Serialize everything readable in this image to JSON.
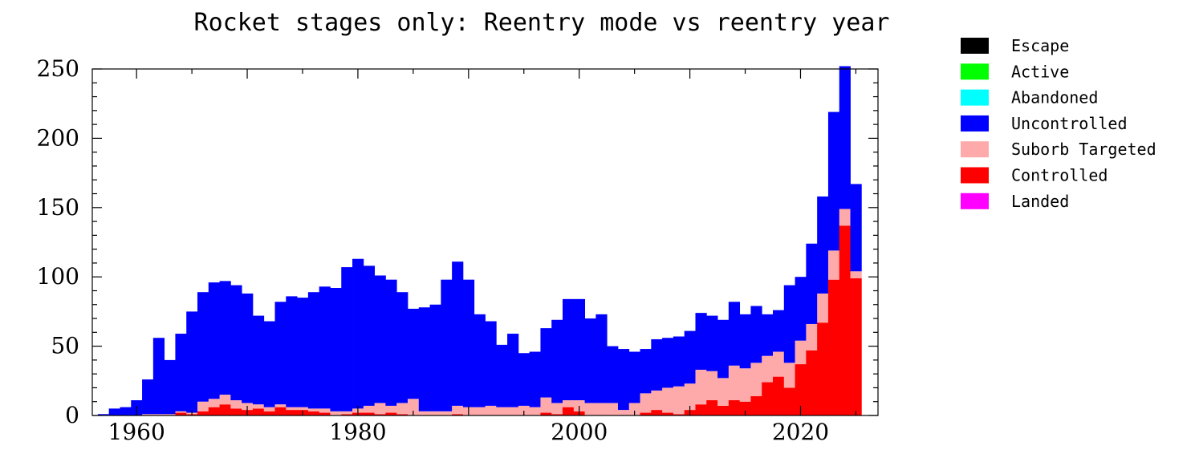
{
  "chart_data": {
    "type": "bar",
    "stacked": true,
    "title": "Rocket stages only: Reentry mode vs reentry year",
    "xlabel": "",
    "ylabel": "",
    "xlim": [
      1956,
      2027
    ],
    "ylim": [
      0,
      250
    ],
    "yticks": [
      0,
      50,
      100,
      150,
      200,
      250
    ],
    "xticks": [
      1960,
      1980,
      2000,
      2020
    ],
    "grid": false,
    "legend_position": "right",
    "x": [
      1957,
      1958,
      1959,
      1960,
      1961,
      1962,
      1963,
      1964,
      1965,
      1966,
      1967,
      1968,
      1969,
      1970,
      1971,
      1972,
      1973,
      1974,
      1975,
      1976,
      1977,
      1978,
      1979,
      1980,
      1981,
      1982,
      1983,
      1984,
      1985,
      1986,
      1987,
      1988,
      1989,
      1990,
      1991,
      1992,
      1993,
      1994,
      1995,
      1996,
      1997,
      1998,
      1999,
      2000,
      2001,
      2002,
      2003,
      2004,
      2005,
      2006,
      2007,
      2008,
      2009,
      2010,
      2011,
      2012,
      2013,
      2014,
      2015,
      2016,
      2017,
      2018,
      2019,
      2020,
      2021,
      2022,
      2023,
      2024,
      2025
    ],
    "series": [
      {
        "name": "Escape",
        "color": "#000000",
        "values": [
          0,
          0,
          0,
          0,
          0,
          0,
          0,
          0,
          0,
          0,
          0,
          0,
          0,
          0,
          0,
          0,
          0,
          0,
          0,
          0,
          0,
          0,
          0,
          0,
          0,
          0,
          0,
          0,
          0,
          0,
          0,
          0,
          0,
          0,
          0,
          0,
          0,
          0,
          0,
          0,
          0,
          0,
          0,
          0,
          0,
          0,
          0,
          0,
          0,
          0,
          0,
          0,
          0,
          0,
          0,
          0,
          0,
          0,
          0,
          0,
          0,
          0,
          0,
          0,
          0,
          0,
          0,
          0,
          0
        ]
      },
      {
        "name": "Active",
        "color": "#00ff00",
        "values": [
          0,
          0,
          0,
          0,
          0,
          0,
          0,
          0,
          0,
          0,
          0,
          0,
          0,
          0,
          0,
          0,
          0,
          0,
          0,
          0,
          0,
          0,
          0,
          0,
          0,
          0,
          0,
          0,
          0,
          0,
          0,
          0,
          0,
          0,
          0,
          0,
          0,
          0,
          0,
          0,
          0,
          0,
          0,
          0,
          0,
          0,
          0,
          0,
          0,
          0,
          0,
          0,
          0,
          0,
          0,
          0,
          0,
          0,
          0,
          0,
          0,
          0,
          0,
          0,
          0,
          0,
          0,
          0,
          0
        ]
      },
      {
        "name": "Abandoned",
        "color": "#00ffff",
        "values": [
          0,
          0,
          0,
          0,
          0,
          0,
          0,
          0,
          0,
          0,
          0,
          0,
          0,
          0,
          0,
          0,
          0,
          0,
          0,
          0,
          0,
          0,
          0,
          0,
          0,
          0,
          0,
          0,
          0,
          0,
          0,
          0,
          0,
          0,
          0,
          0,
          0,
          0,
          0,
          0,
          0,
          0,
          0,
          0,
          0,
          0,
          0,
          0,
          0,
          0,
          0,
          0,
          0,
          0,
          0,
          0,
          0,
          0,
          0,
          0,
          0,
          0,
          0,
          0,
          0,
          0,
          0,
          0,
          0
        ]
      },
      {
        "name": "Uncontrolled",
        "color": "#0000ff",
        "values": [
          1,
          5,
          6,
          11,
          25,
          55,
          39,
          56,
          73,
          79,
          84,
          82,
          83,
          79,
          64,
          62,
          74,
          80,
          79,
          84,
          88,
          89,
          104,
          108,
          101,
          92,
          91,
          80,
          65,
          75,
          77,
          95,
          104,
          92,
          67,
          61,
          45,
          53,
          38,
          40,
          50,
          60,
          73,
          73,
          61,
          64,
          41,
          44,
          37,
          32,
          37,
          36,
          36,
          38,
          41,
          40,
          42,
          46,
          39,
          41,
          30,
          30,
          56,
          46,
          58,
          70,
          100,
          103,
          63
        ]
      },
      {
        "name": "Suborb Targeted",
        "color": "#ffaaaa",
        "values": [
          0,
          0,
          0,
          0,
          1,
          1,
          1,
          1,
          1,
          7,
          6,
          7,
          6,
          5,
          3,
          3,
          2,
          2,
          2,
          2,
          3,
          3,
          2,
          3,
          5,
          8,
          5,
          8,
          12,
          3,
          3,
          3,
          6,
          6,
          6,
          7,
          6,
          6,
          7,
          6,
          11,
          8,
          5,
          8,
          9,
          9,
          9,
          4,
          9,
          14,
          14,
          18,
          20,
          19,
          25,
          21,
          20,
          25,
          24,
          24,
          19,
          18,
          18,
          17,
          19,
          21,
          21,
          12,
          5
        ]
      },
      {
        "name": "Controlled",
        "color": "#ff0000",
        "values": [
          0,
          0,
          0,
          0,
          0,
          0,
          0,
          2,
          1,
          3,
          6,
          8,
          5,
          4,
          5,
          3,
          6,
          4,
          4,
          3,
          2,
          0,
          1,
          2,
          2,
          1,
          2,
          1,
          0,
          0,
          0,
          0,
          1,
          0,
          0,
          0,
          0,
          0,
          0,
          0,
          2,
          1,
          6,
          3,
          0,
          0,
          0,
          0,
          0,
          2,
          4,
          2,
          1,
          4,
          8,
          11,
          7,
          11,
          10,
          14,
          24,
          28,
          20,
          37,
          47,
          67,
          98,
          137,
          99
        ]
      },
      {
        "name": "Landed",
        "color": "#ff00ff",
        "values": [
          0,
          0,
          0,
          0,
          0,
          0,
          0,
          0,
          0,
          0,
          0,
          0,
          0,
          0,
          0,
          0,
          0,
          0,
          0,
          0,
          0,
          0,
          0,
          0,
          0,
          0,
          0,
          0,
          0,
          0,
          0,
          0,
          0,
          0,
          0,
          0,
          0,
          0,
          0,
          0,
          0,
          0,
          0,
          0,
          0,
          0,
          0,
          0,
          0,
          0,
          0,
          0,
          0,
          0,
          0,
          0,
          0,
          0,
          0,
          0,
          0,
          0,
          0,
          0,
          0,
          0,
          0,
          0,
          0
        ]
      }
    ]
  }
}
